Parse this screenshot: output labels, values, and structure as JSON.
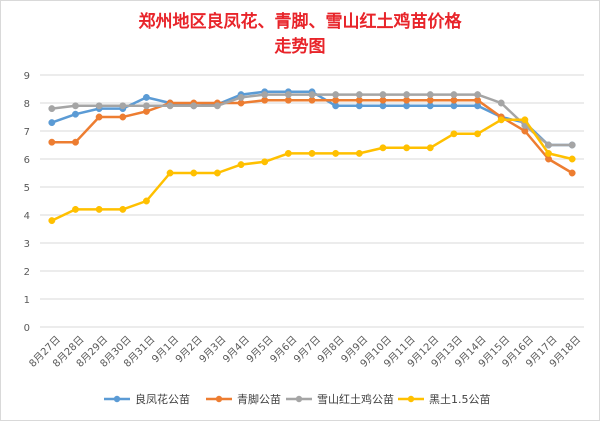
{
  "chart_data": {
    "type": "line",
    "title_lines": [
      "郑州地区良凤花、青脚、雪山红土鸡苗价格",
      "走势图"
    ],
    "title_color": "#e8242a",
    "categories": [
      "8月27日",
      "8月28日",
      "8月29日",
      "8月30日",
      "8月31日",
      "9月1日",
      "9月2日",
      "9月3日",
      "9月4日",
      "9月5日",
      "9月6日",
      "9月7日",
      "9月8日",
      "9月9日",
      "9月10日",
      "9月11日",
      "9月12日",
      "9月13日",
      "9月14日",
      "9月15日",
      "9月16日",
      "9月17日",
      "9月18日"
    ],
    "y_ticks": [
      0,
      1,
      2,
      3,
      4,
      5,
      6,
      7,
      8,
      9
    ],
    "ylim": [
      0,
      9
    ],
    "grid": true,
    "legend_position": "bottom",
    "series": [
      {
        "name": "良凤花公苗",
        "color": "#5b9bd5",
        "values": [
          7.3,
          7.6,
          7.8,
          7.8,
          8.2,
          8.0,
          7.9,
          7.95,
          8.3,
          8.4,
          8.4,
          8.4,
          7.9,
          7.9,
          7.9,
          7.9,
          7.9,
          7.9,
          7.9,
          7.5,
          7.3,
          6.5,
          6.5
        ]
      },
      {
        "name": "青脚公苗",
        "color": "#ed7d31",
        "values": [
          6.6,
          6.6,
          7.5,
          7.5,
          7.7,
          8.0,
          8.0,
          8.0,
          8.0,
          8.1,
          8.1,
          8.1,
          8.1,
          8.1,
          8.1,
          8.1,
          8.1,
          8.1,
          8.1,
          7.5,
          7.0,
          6.0,
          5.5
        ]
      },
      {
        "name": "雪山红土鸡公苗",
        "color": "#a5a5a5",
        "values": [
          7.8,
          7.9,
          7.9,
          7.9,
          7.9,
          7.9,
          7.9,
          7.9,
          8.2,
          8.3,
          8.3,
          8.3,
          8.3,
          8.3,
          8.3,
          8.3,
          8.3,
          8.3,
          8.3,
          8.0,
          7.2,
          6.5,
          6.5
        ]
      },
      {
        "name": "黑土1.5公苗",
        "color": "#ffc000",
        "values": [
          3.8,
          4.2,
          4.2,
          4.2,
          4.5,
          5.5,
          5.5,
          5.5,
          5.8,
          5.9,
          6.2,
          6.2,
          6.2,
          6.2,
          6.4,
          6.4,
          6.4,
          6.9,
          6.9,
          7.4,
          7.4,
          6.2,
          6.0
        ]
      }
    ]
  }
}
